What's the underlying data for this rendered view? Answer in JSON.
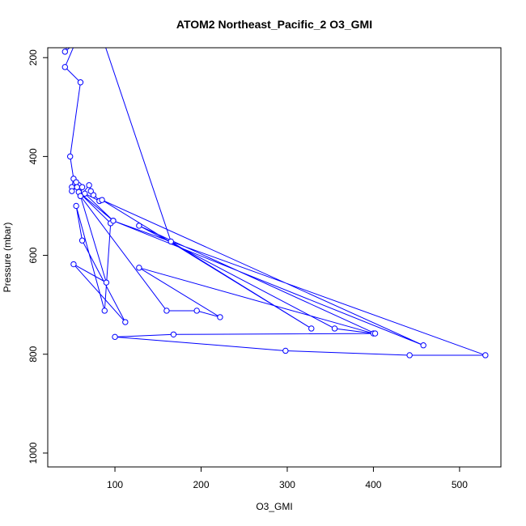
{
  "chart_data": {
    "type": "line",
    "title": "ATOM2 Northeast_Pacific_2 O3_GMI",
    "xlabel": "O3_GMI",
    "ylabel": "Pressure (mbar)",
    "xlim": [
      22,
      548
    ],
    "ylim": [
      1028,
      180
    ],
    "y_reversed": true,
    "x_ticks": [
      100,
      200,
      300,
      400,
      500
    ],
    "y_ticks": [
      200,
      400,
      600,
      800,
      1000
    ],
    "series_color": "#0000ff",
    "series": [
      {
        "points": [
          [
            70,
            80
          ],
          [
            42,
            188
          ],
          [
            54,
            170
          ],
          [
            42,
            219
          ],
          [
            60,
            250
          ],
          [
            48,
            400
          ],
          [
            52,
            445
          ],
          [
            50,
            462
          ],
          [
            58,
            458
          ],
          [
            55,
            452
          ],
          [
            50,
            470
          ],
          [
            56,
            462
          ],
          [
            62,
            462
          ],
          [
            60,
            480
          ],
          [
            70,
            458
          ],
          [
            75,
            478
          ],
          [
            72,
            470
          ],
          [
            82,
            490
          ],
          [
            65,
            475
          ],
          [
            98,
            530
          ],
          [
            58,
            472
          ],
          [
            95,
            535
          ],
          [
            88,
            712
          ],
          [
            55,
            500
          ],
          [
            62,
            570
          ],
          [
            112,
            735
          ],
          [
            52,
            618
          ],
          [
            90,
            655
          ],
          [
            60,
            480
          ],
          [
            160,
            712
          ],
          [
            195,
            712
          ],
          [
            222,
            725
          ],
          [
            128,
            625
          ],
          [
            400,
            758
          ],
          [
            355,
            748
          ],
          [
            128,
            540
          ],
          [
            402,
            758
          ],
          [
            168,
            760
          ],
          [
            100,
            765
          ],
          [
            298,
            793
          ],
          [
            442,
            802
          ],
          [
            530,
            802
          ],
          [
            98,
            530
          ],
          [
            458,
            782
          ],
          [
            85,
            488
          ],
          [
            328,
            748
          ],
          [
            165,
            572
          ],
          [
            70,
            80
          ]
        ]
      }
    ]
  }
}
